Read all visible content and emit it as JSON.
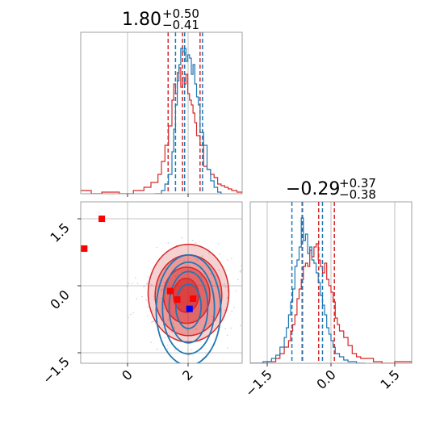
{
  "chart_data": [
    {
      "type": "line",
      "panel": "marginal-param1",
      "title_value": "1.80",
      "title_plus": "+0.50",
      "title_minus": "−0.41",
      "xlim": [
        -1.1,
        3.5
      ],
      "grid": true,
      "series": [
        {
          "color": "#d62728",
          "quantiles": [
            1.39,
            1.8,
            2.3
          ],
          "x": [
            -1.1,
            -0.8,
            -0.5,
            0.0,
            0.4,
            0.7,
            0.9,
            1.1,
            1.2,
            1.3,
            1.4,
            1.5,
            1.55,
            1.6,
            1.65,
            1.7,
            1.75,
            1.8,
            1.85,
            1.9,
            1.95,
            2.0,
            2.05,
            2.1,
            2.15,
            2.2,
            2.3,
            2.4,
            2.5,
            2.6,
            2.7,
            2.8,
            2.9,
            3.0,
            3.1,
            3.2,
            3.35,
            3.5
          ],
          "y": [
            0.02,
            0.0,
            0.01,
            0.0,
            0.02,
            0.04,
            0.07,
            0.12,
            0.2,
            0.3,
            0.42,
            0.58,
            0.68,
            0.62,
            0.75,
            0.78,
            0.66,
            0.72,
            0.68,
            0.74,
            0.62,
            0.58,
            0.55,
            0.5,
            0.44,
            0.36,
            0.3,
            0.17,
            0.15,
            0.12,
            0.1,
            0.06,
            0.05,
            0.04,
            0.03,
            0.02,
            0.01,
            0.0
          ]
        },
        {
          "color": "#1f77b4",
          "quantiles": [
            1.6,
            1.86,
            2.37
          ],
          "x": [
            1.0,
            1.2,
            1.3,
            1.4,
            1.5,
            1.55,
            1.6,
            1.65,
            1.7,
            1.75,
            1.8,
            1.85,
            1.9,
            1.95,
            2.0,
            2.05,
            2.1,
            2.15,
            2.2,
            2.25,
            2.3,
            2.4,
            2.5,
            2.6,
            2.7,
            2.8,
            2.9
          ],
          "y": [
            0.0,
            0.02,
            0.06,
            0.12,
            0.26,
            0.4,
            0.55,
            0.7,
            0.8,
            0.9,
            0.88,
            0.9,
            0.82,
            0.86,
            0.84,
            0.74,
            0.8,
            0.68,
            0.6,
            0.55,
            0.38,
            0.3,
            0.15,
            0.08,
            0.04,
            0.01,
            0.0
          ]
        }
      ]
    },
    {
      "type": "line",
      "panel": "marginal-param2",
      "title_value": "−0.29",
      "title_plus": "+0.37",
      "title_minus": "−0.38",
      "xlim": [
        -1.9,
        1.9
      ],
      "xticks": [
        "−1.5",
        "0.0",
        "1.5"
      ],
      "grid": true,
      "series": [
        {
          "color": "#d62728",
          "quantiles": [
            -0.67,
            -0.29,
            0.08
          ],
          "x": [
            -1.9,
            -1.5,
            -1.3,
            -1.2,
            -1.1,
            -1.0,
            -0.95,
            -0.9,
            -0.85,
            -0.8,
            -0.75,
            -0.7,
            -0.65,
            -0.6,
            -0.55,
            -0.5,
            -0.45,
            -0.4,
            -0.35,
            -0.3,
            -0.25,
            -0.2,
            -0.15,
            -0.1,
            -0.05,
            0.0,
            0.05,
            0.1,
            0.15,
            0.2,
            0.3,
            0.4,
            0.5,
            0.6,
            0.7,
            0.8,
            1.0,
            1.2,
            1.5,
            1.9
          ],
          "y": [
            0.0,
            0.01,
            0.03,
            0.06,
            0.1,
            0.14,
            0.2,
            0.24,
            0.3,
            0.4,
            0.46,
            0.52,
            0.6,
            0.62,
            0.6,
            0.7,
            0.66,
            0.72,
            0.74,
            0.64,
            0.6,
            0.56,
            0.62,
            0.52,
            0.48,
            0.44,
            0.38,
            0.28,
            0.24,
            0.2,
            0.16,
            0.11,
            0.06,
            0.04,
            0.03,
            0.03,
            0.01,
            0.0,
            0.01,
            0.0
          ]
        },
        {
          "color": "#1f77b4",
          "quantiles": [
            -0.92,
            -0.68,
            -0.2
          ],
          "x": [
            -1.9,
            -1.6,
            -1.4,
            -1.3,
            -1.2,
            -1.1,
            -1.05,
            -1.0,
            -0.95,
            -0.9,
            -0.85,
            -0.8,
            -0.75,
            -0.7,
            -0.65,
            -0.6,
            -0.55,
            -0.5,
            -0.45,
            -0.4,
            -0.35,
            -0.3,
            -0.25,
            -0.2,
            -0.15,
            -0.1,
            -0.05,
            0.0,
            0.05,
            0.1,
            0.2,
            0.3,
            0.4,
            0.6,
            0.8
          ],
          "y": [
            0.0,
            0.01,
            0.03,
            0.05,
            0.1,
            0.16,
            0.22,
            0.3,
            0.38,
            0.46,
            0.6,
            0.64,
            0.72,
            0.9,
            0.76,
            0.8,
            0.68,
            0.72,
            0.64,
            0.62,
            0.56,
            0.5,
            0.42,
            0.36,
            0.3,
            0.22,
            0.18,
            0.14,
            0.1,
            0.06,
            0.04,
            0.02,
            0.01,
            0.0,
            0.0
          ]
        }
      ]
    },
    {
      "type": "scatter",
      "panel": "joint",
      "xlim": [
        -1.1,
        3.5
      ],
      "ylim": [
        -1.8,
        2.0
      ],
      "xticks": [
        "0",
        "2"
      ],
      "yticks": [
        "−1.5",
        "0.0",
        "1.5"
      ],
      "grid": true,
      "contours": [
        {
          "color": "#d62728",
          "levels": [
            {
              "cx": 1.97,
              "cy": -0.15,
              "rx": 1.15,
              "ry": 1.15
            },
            {
              "cx": 1.97,
              "cy": -0.2,
              "rx": 0.95,
              "ry": 0.95
            },
            {
              "cx": 1.92,
              "cy": -0.2,
              "rx": 0.66,
              "ry": 0.66
            },
            {
              "cx": 1.9,
              "cy": -0.2,
              "rx": 0.36,
              "ry": 0.4
            }
          ]
        },
        {
          "color": "#1f77b4",
          "levels": [
            {
              "cx": 1.97,
              "cy": -0.55,
              "rx": 0.92,
              "ry": 1.3
            },
            {
              "cx": 1.97,
              "cy": -0.5,
              "rx": 0.74,
              "ry": 1.08
            },
            {
              "cx": 1.97,
              "cy": -0.48,
              "rx": 0.55,
              "ry": 0.84
            },
            {
              "cx": 1.97,
              "cy": -0.46,
              "rx": 0.36,
              "ry": 0.52
            }
          ]
        }
      ],
      "markers": [
        {
          "color": "#ff0000",
          "x": -1.0,
          "y": 0.9
        },
        {
          "color": "#ff0000",
          "x": -0.5,
          "y": 1.6
        },
        {
          "color": "#ff0000",
          "x": 1.45,
          "y": -0.1
        },
        {
          "color": "#ff0000",
          "x": 1.65,
          "y": -0.3
        },
        {
          "color": "#ff0000",
          "x": 2.1,
          "y": -0.28
        },
        {
          "color": "#0000ff",
          "x": 2.0,
          "y": -0.52
        }
      ]
    }
  ]
}
